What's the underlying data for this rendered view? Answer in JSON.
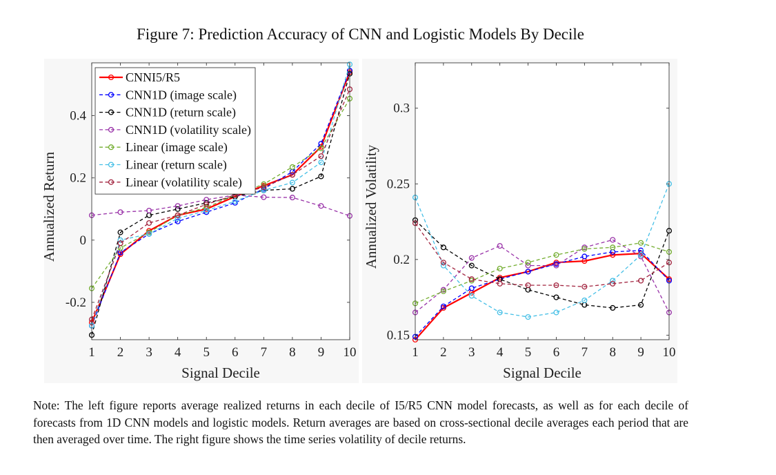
{
  "figure_title": "Figure 7: Prediction Accuracy of CNN and Logistic Models By Decile",
  "note": "Note: The left figure reports average realized returns in each decile of I5/R5 CNN model forecasts, as well as for each decile of forecasts from 1D CNN models and logistic models. Return averages are based on cross-sectional decile averages each period that are then averaged over time. The right figure shows the time series volatility of decile returns.",
  "series_styles": [
    {
      "name": "CNNI5/R5",
      "color": "#ff0000",
      "dashed": false
    },
    {
      "name": "CNN1D (image scale)",
      "color": "#0000ff",
      "dashed": true
    },
    {
      "name": "CNN1D (return scale)",
      "color": "#000000",
      "dashed": true
    },
    {
      "name": "CNN1D (volatility scale)",
      "color": "#9932a8",
      "dashed": true
    },
    {
      "name": "Linear (image scale)",
      "color": "#73ad2f",
      "dashed": true
    },
    {
      "name": "Linear (return scale)",
      "color": "#45bfe6",
      "dashed": true
    },
    {
      "name": "Linear (volatility scale)",
      "color": "#a2243f",
      "dashed": true
    }
  ],
  "chart_data": [
    {
      "type": "line",
      "title": "",
      "xlabel": "Signal Decile",
      "ylabel": "Annualized Return",
      "x": [
        1,
        2,
        3,
        4,
        5,
        6,
        7,
        8,
        9,
        10
      ],
      "xticks": [
        "1",
        "2",
        "3",
        "4",
        "5",
        "6",
        "7",
        "8",
        "9",
        "10"
      ],
      "ylim": [
        -0.32,
        0.57
      ],
      "yticks": [
        -0.2,
        0,
        0.2,
        0.4
      ],
      "ytick_labels": [
        "-0.2",
        "0",
        "0.2",
        "0.4"
      ],
      "legend": "top-left",
      "series": [
        {
          "name": "CNNI5/R5",
          "values": [
            -0.265,
            -0.045,
            0.03,
            0.08,
            0.1,
            0.14,
            0.175,
            0.21,
            0.3,
            0.54
          ]
        },
        {
          "name": "CNN1D (image scale)",
          "values": [
            -0.275,
            -0.04,
            0.02,
            0.06,
            0.09,
            0.12,
            0.165,
            0.22,
            0.31,
            0.545
          ]
        },
        {
          "name": "CNN1D (return scale)",
          "values": [
            -0.305,
            0.025,
            0.08,
            0.1,
            0.12,
            0.14,
            0.16,
            0.165,
            0.205,
            0.535
          ]
        },
        {
          "name": "CNN1D (volatility scale)",
          "values": [
            0.08,
            0.09,
            0.095,
            0.11,
            0.13,
            0.145,
            0.138,
            0.137,
            0.11,
            0.078
          ]
        },
        {
          "name": "Linear (image scale)",
          "values": [
            -0.155,
            -0.025,
            0.025,
            0.08,
            0.105,
            0.145,
            0.18,
            0.235,
            0.295,
            0.455
          ]
        },
        {
          "name": "Linear (return scale)",
          "values": [
            -0.275,
            0.0,
            0.02,
            0.07,
            0.095,
            0.125,
            0.16,
            0.185,
            0.25,
            0.565
          ]
        },
        {
          "name": "Linear (volatility scale)",
          "values": [
            -0.255,
            -0.01,
            0.055,
            0.08,
            0.115,
            0.145,
            0.17,
            0.21,
            0.27,
            0.485
          ]
        }
      ]
    },
    {
      "type": "line",
      "title": "",
      "xlabel": "Signal Decile",
      "ylabel": "Annualized Volatility",
      "x": [
        1,
        2,
        3,
        4,
        5,
        6,
        7,
        8,
        9,
        10
      ],
      "xticks": [
        "1",
        "2",
        "3",
        "4",
        "5",
        "6",
        "7",
        "8",
        "9",
        "10"
      ],
      "ylim": [
        0.147,
        0.33
      ],
      "yticks": [
        0.15,
        0.2,
        0.25,
        0.3
      ],
      "ytick_labels": [
        "0.15",
        "0.2",
        "0.25",
        "0.3"
      ],
      "series": [
        {
          "name": "CNNI5/R5",
          "values": [
            0.147,
            0.168,
            0.178,
            0.188,
            0.192,
            0.198,
            0.199,
            0.203,
            0.204,
            0.187
          ]
        },
        {
          "name": "CNN1D (image scale)",
          "values": [
            0.149,
            0.169,
            0.181,
            0.187,
            0.192,
            0.197,
            0.202,
            0.205,
            0.206,
            0.186
          ]
        },
        {
          "name": "CNN1D (return scale)",
          "values": [
            0.226,
            0.208,
            0.196,
            0.187,
            0.18,
            0.175,
            0.17,
            0.168,
            0.17,
            0.219
          ]
        },
        {
          "name": "CNN1D (volatility scale)",
          "values": [
            0.165,
            0.18,
            0.201,
            0.209,
            0.196,
            0.196,
            0.208,
            0.213,
            0.202,
            0.165
          ]
        },
        {
          "name": "Linear (image scale)",
          "values": [
            0.171,
            0.179,
            0.186,
            0.194,
            0.198,
            0.203,
            0.207,
            0.208,
            0.211,
            0.205
          ]
        },
        {
          "name": "Linear (return scale)",
          "values": [
            0.241,
            0.196,
            0.176,
            0.165,
            0.162,
            0.165,
            0.173,
            0.186,
            0.203,
            0.25
          ]
        },
        {
          "name": "Linear (volatility scale)",
          "values": [
            0.224,
            0.198,
            0.187,
            0.184,
            0.183,
            0.183,
            0.182,
            0.184,
            0.186,
            0.198
          ]
        }
      ]
    }
  ]
}
